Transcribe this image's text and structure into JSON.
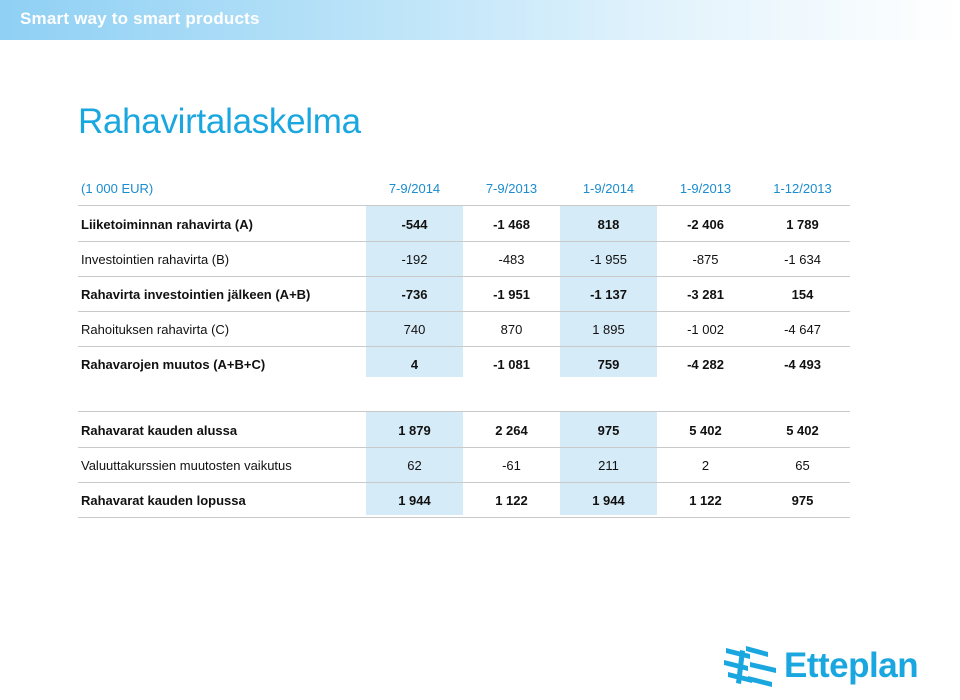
{
  "header": {
    "tagline": "Smart way to smart products"
  },
  "title": "Rahavirtalaskelma",
  "table": {
    "unit_label": "(1 000 EUR)",
    "columns": [
      "7-9/2014",
      "7-9/2013",
      "1-9/2014",
      "1-9/2013",
      "1-12/2013"
    ],
    "rows": [
      {
        "label": "Liiketoiminnan rahavirta (A)",
        "bold": true,
        "values": [
          "-544",
          "-1 468",
          "818",
          "-2 406",
          "1 789"
        ]
      },
      {
        "label": "Investointien rahavirta (B)",
        "bold": false,
        "values": [
          "-192",
          "-483",
          "-1 955",
          "-875",
          "-1 634"
        ]
      },
      {
        "label": "Rahavirta investointien jälkeen (A+B)",
        "bold": true,
        "values": [
          "-736",
          "-1 951",
          "-1 137",
          "-3 281",
          "154"
        ]
      },
      {
        "label": "Rahoituksen rahavirta (C)",
        "bold": false,
        "values": [
          "740",
          "870",
          "1 895",
          "-1 002",
          "-4 647"
        ]
      },
      {
        "label": "Rahavarojen muutos (A+B+C)",
        "bold": true,
        "values": [
          "4",
          "-1 081",
          "759",
          "-4 282",
          "-4 493"
        ]
      },
      {
        "label": "Rahavarat kauden alussa",
        "bold": true,
        "values": [
          "1 879",
          "2 264",
          "975",
          "5 402",
          "5 402"
        ]
      },
      {
        "label": "Valuuttakurssien muutosten vaikutus",
        "bold": false,
        "values": [
          "62",
          "-61",
          "211",
          "2",
          "65"
        ]
      },
      {
        "label": "Rahavarat kauden lopussa",
        "bold": true,
        "values": [
          "1 944",
          "1 122",
          "1 944",
          "1 122",
          "975"
        ]
      }
    ]
  },
  "logo": {
    "text": "Etteplan",
    "icon": "etteplan-logo-mark"
  },
  "colors": {
    "accent": "#1aa7e0",
    "header_text": "#1a8ccf",
    "column_shade": "#d6ebf8"
  }
}
